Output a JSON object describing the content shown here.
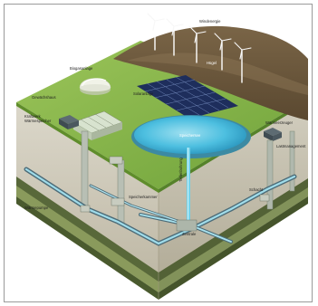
{
  "diagram": {
    "labels": {
      "wind": "Windenergie",
      "hill": "Hügel",
      "biogas": "Biogasanlage",
      "solar": "Solaranlage",
      "greenhouse": "Gewächshaus",
      "lake": "Speichersee",
      "left_station": "Kraftwerk",
      "left_station_2": "Wärmespeicher",
      "right_station": "Wärmeerzeuger",
      "right_station_2": "Lastmanagement",
      "well": "Tiefenbohrung",
      "underground_left": "Wärmepumpe",
      "underground_mid": "Speicherkammer",
      "underground_center": "Zentrale",
      "shaft": "Schacht"
    },
    "colors": {
      "grass": "#7fb241",
      "grass_dark": "#5f8d2b",
      "hill": "#6e5a3c",
      "soil_top": "#cfc9b8",
      "strata_dark": "#54633a",
      "water": "#3bb3d6",
      "pipe": "#8fd3e3",
      "solar": "#2c3f78"
    }
  }
}
